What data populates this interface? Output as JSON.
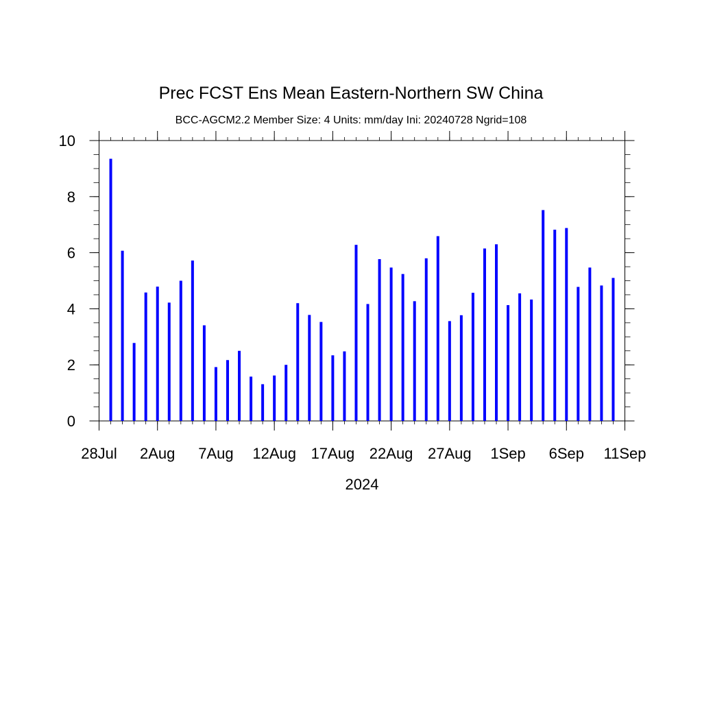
{
  "chart_data": {
    "type": "bar",
    "title": "Prec FCST Ens Mean Eastern-Northern SW China",
    "subtitle": "BCC-AGCM2.2  Member Size: 4  Units: mm/day  Ini: 20240728  Ngrid=108",
    "xlabel": "2024",
    "ylabel": "",
    "x_tick_labels": [
      "28Jul",
      "2Aug",
      "7Aug",
      "12Aug",
      "17Aug",
      "22Aug",
      "27Aug",
      "1Sep",
      "6Sep",
      "11Sep"
    ],
    "y_tick_labels": [
      "0",
      "2",
      "4",
      "6",
      "8",
      "10"
    ],
    "ylim": [
      0,
      10
    ],
    "x": [
      "2024-07-29",
      "2024-07-30",
      "2024-07-31",
      "2024-08-01",
      "2024-08-02",
      "2024-08-03",
      "2024-08-04",
      "2024-08-05",
      "2024-08-06",
      "2024-08-07",
      "2024-08-08",
      "2024-08-09",
      "2024-08-10",
      "2024-08-11",
      "2024-08-12",
      "2024-08-13",
      "2024-08-14",
      "2024-08-15",
      "2024-08-16",
      "2024-08-17",
      "2024-08-18",
      "2024-08-19",
      "2024-08-20",
      "2024-08-21",
      "2024-08-22",
      "2024-08-23",
      "2024-08-24",
      "2024-08-25",
      "2024-08-26",
      "2024-08-27",
      "2024-08-28",
      "2024-08-29",
      "2024-08-30",
      "2024-08-31",
      "2024-09-01",
      "2024-09-02",
      "2024-09-03",
      "2024-09-04",
      "2024-09-05",
      "2024-09-06",
      "2024-09-07",
      "2024-09-08",
      "2024-09-09",
      "2024-09-10"
    ],
    "values": [
      9.35,
      6.07,
      2.78,
      4.58,
      4.79,
      4.22,
      5.0,
      5.72,
      3.41,
      1.92,
      2.17,
      2.5,
      1.58,
      1.31,
      1.62,
      2.0,
      4.2,
      3.78,
      3.53,
      2.34,
      2.48,
      6.28,
      4.17,
      5.77,
      5.47,
      5.24,
      4.27,
      5.8,
      6.59,
      3.56,
      3.77,
      4.57,
      6.15,
      6.3,
      4.13,
      4.55,
      4.33,
      7.52,
      6.82,
      6.88,
      4.78,
      5.47,
      4.83,
      5.1
    ],
    "bar_color": "#0000ff",
    "grid": false,
    "legend": "none"
  }
}
